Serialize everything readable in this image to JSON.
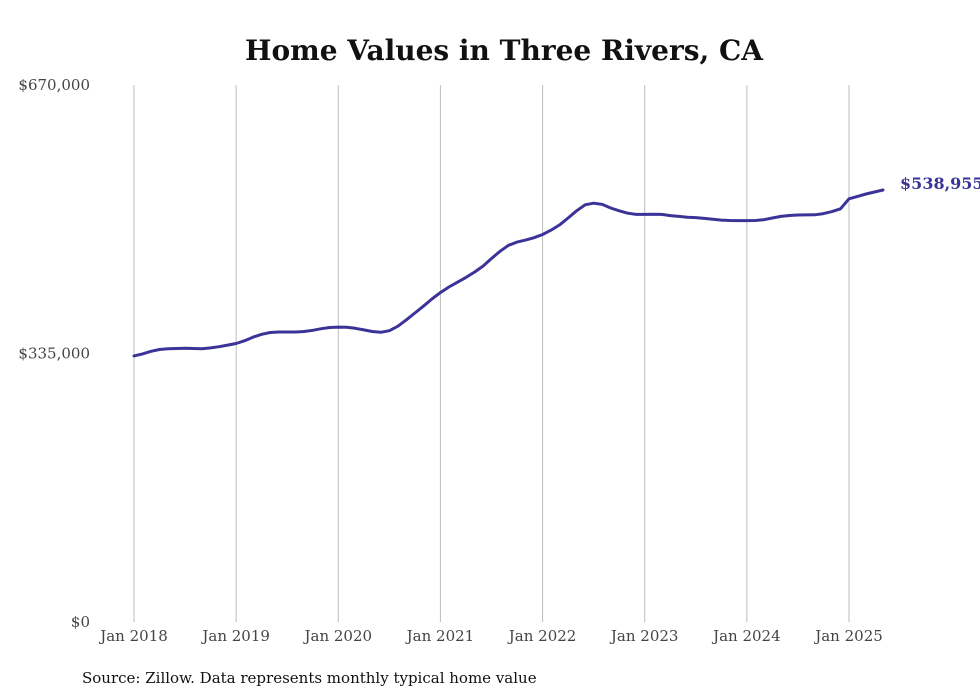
{
  "chart_data": {
    "type": "line",
    "title": "Home Values in Three Rivers, CA",
    "xlabel": "",
    "ylabel": "",
    "ylim": [
      0,
      670000
    ],
    "y_ticks": [
      0,
      335000,
      670000
    ],
    "y_tick_labels": [
      "$0",
      "$335,000",
      "$670,000"
    ],
    "x_ticks": [
      "2018-01",
      "2019-01",
      "2020-01",
      "2021-01",
      "2022-01",
      "2023-01",
      "2024-01",
      "2025-01"
    ],
    "x_tick_labels": [
      "Jan 2018",
      "Jan 2019",
      "Jan 2020",
      "Jan 2021",
      "Jan 2022",
      "Jan 2023",
      "Jan 2024",
      "Jan 2025"
    ],
    "grid": "vertical",
    "series": [
      {
        "color": "#3b3398",
        "end_label": "$538,955",
        "points": [
          [
            "2018-01",
            332000
          ],
          [
            "2018-02",
            334500
          ],
          [
            "2018-03",
            337800
          ],
          [
            "2018-04",
            340000
          ],
          [
            "2018-05",
            341000
          ],
          [
            "2018-06",
            341300
          ],
          [
            "2018-07",
            341500
          ],
          [
            "2018-08",
            341200
          ],
          [
            "2018-09",
            341000
          ],
          [
            "2018-10",
            342000
          ],
          [
            "2018-11",
            343500
          ],
          [
            "2018-12",
            345500
          ],
          [
            "2019-01",
            347500
          ],
          [
            "2019-02",
            351000
          ],
          [
            "2019-03",
            355500
          ],
          [
            "2019-04",
            359000
          ],
          [
            "2019-05",
            361200
          ],
          [
            "2019-06",
            361800
          ],
          [
            "2019-07",
            361800
          ],
          [
            "2019-08",
            361800
          ],
          [
            "2019-09",
            362500
          ],
          [
            "2019-10",
            364000
          ],
          [
            "2019-11",
            366000
          ],
          [
            "2019-12",
            367500
          ],
          [
            "2020-01",
            368000
          ],
          [
            "2020-02",
            367800
          ],
          [
            "2020-03",
            366500
          ],
          [
            "2020-04",
            364500
          ],
          [
            "2020-05",
            362500
          ],
          [
            "2020-06",
            361500
          ],
          [
            "2020-07",
            363500
          ],
          [
            "2020-08",
            369000
          ],
          [
            "2020-09",
            377000
          ],
          [
            "2020-10",
            385500
          ],
          [
            "2020-11",
            394000
          ],
          [
            "2020-12",
            403000
          ],
          [
            "2021-01",
            411000
          ],
          [
            "2021-02",
            418000
          ],
          [
            "2021-03",
            424000
          ],
          [
            "2021-04",
            430000
          ],
          [
            "2021-05",
            436500
          ],
          [
            "2021-06",
            444000
          ],
          [
            "2021-07",
            453500
          ],
          [
            "2021-08",
            462500
          ],
          [
            "2021-09",
            470000
          ],
          [
            "2021-10",
            474000
          ],
          [
            "2021-11",
            476500
          ],
          [
            "2021-12",
            479500
          ],
          [
            "2022-01",
            483500
          ],
          [
            "2022-02",
            489000
          ],
          [
            "2022-03",
            495500
          ],
          [
            "2022-04",
            504000
          ],
          [
            "2022-05",
            513000
          ],
          [
            "2022-06",
            520500
          ],
          [
            "2022-07",
            522500
          ],
          [
            "2022-08",
            521000
          ],
          [
            "2022-09",
            516500
          ],
          [
            "2022-10",
            513000
          ],
          [
            "2022-11",
            510000
          ],
          [
            "2022-12",
            508500
          ],
          [
            "2023-01",
            508500
          ],
          [
            "2023-02",
            508800
          ],
          [
            "2023-03",
            508500
          ],
          [
            "2023-04",
            507000
          ],
          [
            "2023-05",
            506000
          ],
          [
            "2023-06",
            505000
          ],
          [
            "2023-07",
            504500
          ],
          [
            "2023-08",
            503500
          ],
          [
            "2023-09",
            502500
          ],
          [
            "2023-10",
            501500
          ],
          [
            "2023-11",
            501000
          ],
          [
            "2023-12",
            500800
          ],
          [
            "2024-01",
            500800
          ],
          [
            "2024-02",
            501000
          ],
          [
            "2024-03",
            502000
          ],
          [
            "2024-04",
            504000
          ],
          [
            "2024-05",
            506000
          ],
          [
            "2024-06",
            507200
          ],
          [
            "2024-07",
            507800
          ],
          [
            "2024-08",
            507900
          ],
          [
            "2024-09",
            508000
          ],
          [
            "2024-10",
            509500
          ],
          [
            "2024-11",
            512000
          ],
          [
            "2024-12",
            515500
          ],
          [
            "2025-01",
            528000
          ],
          [
            "2025-02",
            531000
          ],
          [
            "2025-03",
            534000
          ],
          [
            "2025-04",
            536500
          ],
          [
            "2025-05",
            538955
          ]
        ]
      }
    ]
  },
  "footer": {
    "source": "Source: Zillow. Data represents monthly typical home value"
  }
}
